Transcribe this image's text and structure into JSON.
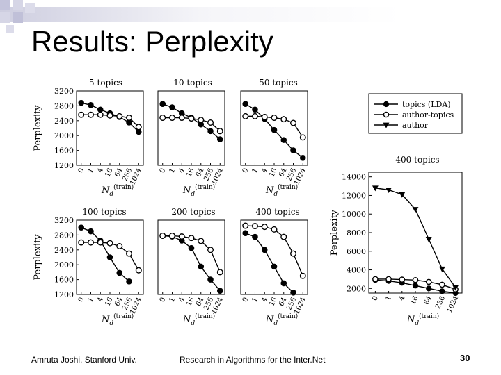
{
  "slide": {
    "title": "Results: Perplexity",
    "footer_author": "Amruta Joshi, Stanford Univ.",
    "footer_course": "Research in Algorithms for the Inter.Net",
    "page_number": "30"
  },
  "colors": {
    "deco_square": "#c8c8e0",
    "deco_bar": "#d8d8e8",
    "ink": "#000000"
  },
  "legend": {
    "items": [
      {
        "label": "topics (LDA)",
        "marker": "filled-circle"
      },
      {
        "label": "author-topics",
        "marker": "open-circle"
      },
      {
        "label": "author",
        "marker": "filled-triangle"
      }
    ]
  },
  "chart_data": [
    {
      "type": "line",
      "title": "5 topics",
      "ylabel": "Perplexity",
      "xlabel": "Nd (train)",
      "x_sub": "d",
      "x_sup": "(train)",
      "categories": [
        "0",
        "1",
        "4",
        "16",
        "64",
        "256",
        "1024"
      ],
      "ylim": [
        1200,
        3200
      ],
      "yticks": [
        1200,
        1600,
        2000,
        2400,
        2800,
        3200
      ],
      "series": [
        {
          "name": "topics (LDA)",
          "marker": "filled-circle",
          "values": [
            2880,
            2820,
            2700,
            2600,
            2500,
            2350,
            2100
          ]
        },
        {
          "name": "author-topics",
          "marker": "open-circle",
          "values": [
            2560,
            2560,
            2560,
            2540,
            2520,
            2480,
            2230
          ]
        }
      ]
    },
    {
      "type": "line",
      "title": "10 topics",
      "ylabel": "",
      "xlabel": "Nd (train)",
      "x_sub": "d",
      "x_sup": "(train)",
      "categories": [
        "0",
        "1",
        "4",
        "16",
        "64",
        "256",
        "1024"
      ],
      "ylim": [
        1200,
        3200
      ],
      "yticks": [],
      "series": [
        {
          "name": "topics (LDA)",
          "marker": "filled-circle",
          "values": [
            2850,
            2760,
            2600,
            2480,
            2300,
            2120,
            1900
          ]
        },
        {
          "name": "author-topics",
          "marker": "open-circle",
          "values": [
            2480,
            2480,
            2480,
            2460,
            2420,
            2350,
            2120
          ]
        }
      ]
    },
    {
      "type": "line",
      "title": "50 topics",
      "ylabel": "",
      "xlabel": "Nd (train)",
      "x_sub": "d",
      "x_sup": "(train)",
      "categories": [
        "0",
        "1",
        "4",
        "16",
        "64",
        "256",
        "1024"
      ],
      "ylim": [
        1200,
        3200
      ],
      "yticks": [],
      "series": [
        {
          "name": "topics (LDA)",
          "marker": "filled-circle",
          "values": [
            2850,
            2700,
            2450,
            2150,
            1880,
            1600,
            1400
          ]
        },
        {
          "name": "author-topics",
          "marker": "open-circle",
          "values": [
            2520,
            2520,
            2500,
            2480,
            2440,
            2340,
            1950
          ]
        }
      ]
    },
    {
      "type": "line",
      "title": "100 topics",
      "ylabel": "Perplexity",
      "xlabel": "Nd (train)",
      "x_sub": "d",
      "x_sup": "(train)",
      "categories": [
        "0",
        "1",
        "4",
        "16",
        "64",
        "256",
        "1024"
      ],
      "ylim": [
        1200,
        3200
      ],
      "yticks": [
        1200,
        1600,
        2000,
        2400,
        2800,
        3200
      ],
      "series": [
        {
          "name": "topics (LDA)",
          "marker": "filled-circle",
          "values": [
            3000,
            2900,
            2650,
            2200,
            1780,
            1550,
            null
          ]
        },
        {
          "name": "author-topics",
          "marker": "open-circle",
          "values": [
            2600,
            2600,
            2600,
            2580,
            2500,
            2300,
            1850
          ]
        }
      ]
    },
    {
      "type": "line",
      "title": "200 topics",
      "ylabel": "",
      "xlabel": "Nd (train)",
      "x_sub": "d",
      "x_sup": "(train)",
      "categories": [
        "0",
        "1",
        "4",
        "16",
        "64",
        "256",
        "1024"
      ],
      "ylim": [
        1200,
        3200
      ],
      "yticks": [],
      "series": [
        {
          "name": "topics (LDA)",
          "marker": "filled-circle",
          "values": [
            2780,
            2760,
            2650,
            2450,
            1950,
            1600,
            1300
          ]
        },
        {
          "name": "author-topics",
          "marker": "open-circle",
          "values": [
            2780,
            2780,
            2760,
            2720,
            2640,
            2400,
            1800
          ]
        }
      ]
    },
    {
      "type": "line",
      "title": "400 topics",
      "ylabel": "",
      "xlabel": "Nd (train)",
      "x_sub": "d",
      "x_sup": "(train)",
      "categories": [
        "0",
        "1",
        "4",
        "16",
        "64",
        "256",
        "1024"
      ],
      "ylim": [
        1200,
        3200
      ],
      "yticks": [],
      "series": [
        {
          "name": "topics (LDA)",
          "marker": "filled-circle",
          "values": [
            2850,
            2750,
            2400,
            1950,
            1500,
            1250,
            null
          ]
        },
        {
          "name": "author-topics",
          "marker": "open-circle",
          "values": [
            3050,
            3040,
            3020,
            2950,
            2750,
            2300,
            1700
          ]
        }
      ]
    },
    {
      "type": "line",
      "title": "400 topics",
      "ylabel": "Perplexity",
      "xlabel": "Nd (train)",
      "x_sub": "d",
      "x_sup": "(train)",
      "categories": [
        "0",
        "1",
        "4",
        "16",
        "64",
        "256",
        "1024"
      ],
      "ylim": [
        1500,
        14500
      ],
      "yticks": [
        2000,
        4000,
        6000,
        8000,
        10000,
        12000,
        14000
      ],
      "series": [
        {
          "name": "topics (LDA)",
          "marker": "filled-circle",
          "values": [
            2900,
            2800,
            2600,
            2300,
            2000,
            1700,
            1500
          ]
        },
        {
          "name": "author-topics",
          "marker": "open-circle",
          "values": [
            3000,
            3000,
            2950,
            2900,
            2700,
            2400,
            1900
          ]
        },
        {
          "name": "author",
          "marker": "filled-triangle",
          "values": [
            12800,
            12600,
            12100,
            10500,
            7300,
            4100,
            2100
          ]
        }
      ]
    }
  ]
}
